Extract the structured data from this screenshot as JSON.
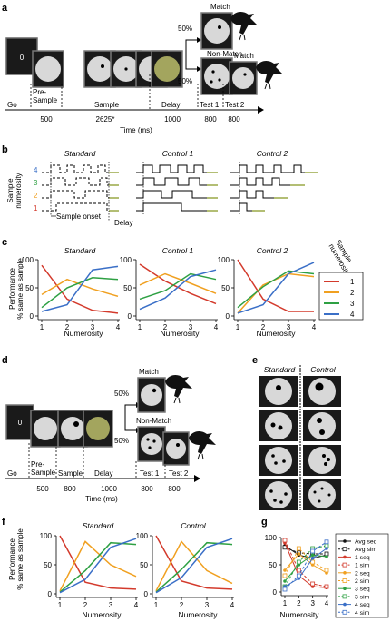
{
  "panels": {
    "a": "a",
    "b": "b",
    "c": "c",
    "d": "d",
    "e": "e",
    "f": "f",
    "g": "g"
  },
  "percent": "50%",
  "panel_a": {
    "screen_digit": "0",
    "match": "Match",
    "non_match": "Non-Match",
    "phase_labels": [
      "Go",
      "Pre-\nSample",
      "Sample",
      "Delay",
      "Test 1",
      "Test 2"
    ],
    "durations": [
      "500",
      "2625*",
      "1000",
      "800",
      "800"
    ],
    "time_label": "Time (ms)"
  },
  "panel_b": {
    "titles": [
      "Standard",
      "Control 1",
      "Control 2"
    ],
    "ylabel": "Sample\nnumerosity",
    "row_labels": [
      "4",
      "3",
      "2",
      "1"
    ],
    "row_colors": [
      "#3a6fc7",
      "#2ea043",
      "#f0a020",
      "#d33a2c"
    ],
    "sample_onset": "Sample onset",
    "delay": "Delay"
  },
  "panel_c": {
    "titles": [
      "Standard",
      "Control 1",
      "Control 2"
    ],
    "ylabel": "Performance\n% same as sample",
    "xlabel": "Numerosity",
    "yticks": [
      "0",
      "50",
      "100"
    ],
    "xticks": [
      "1",
      "2",
      "3",
      "4"
    ],
    "legend_title": "Sample\nnumerosity",
    "legend": [
      "1",
      "2",
      "3",
      "4"
    ]
  },
  "panel_d": {
    "screen_digit": "0",
    "match": "Match",
    "non_match": "Non-Match",
    "phase_labels": [
      "Go",
      "Pre-\nSample",
      "Sample",
      "Delay",
      "Test 1",
      "Test 2"
    ],
    "durations": [
      "500",
      "800",
      "1000",
      "800",
      "800"
    ],
    "time_label": "Time (ms)"
  },
  "panel_e": {
    "titles": [
      "Standard",
      "Control"
    ]
  },
  "panel_f": {
    "titles": [
      "Standard",
      "Control"
    ],
    "ylabel": "Performance\n% same as sample",
    "xlabel": "Numerosity",
    "yticks": [
      "0",
      "50",
      "100"
    ],
    "xticks": [
      "1",
      "2",
      "3",
      "4"
    ]
  },
  "panel_g": {
    "xlabel": "Numerosity",
    "yticks": [
      "0",
      "50",
      "100"
    ],
    "xticks": [
      "1",
      "2",
      "3",
      "4"
    ],
    "legend": [
      "Avg seq",
      "Avg sim",
      "1 seq",
      "1 sim",
      "2 seq",
      "2 sim",
      "3 seq",
      "3 sim",
      "4 seq",
      "4 sim"
    ]
  },
  "chart_data": [
    {
      "type": "line",
      "panel": "c",
      "title": "Standard",
      "x": [
        1,
        2,
        3,
        4
      ],
      "ylim": [
        0,
        100
      ],
      "series": [
        {
          "name": "1",
          "color": "#d33a2c",
          "values": [
            90,
            30,
            10,
            5
          ]
        },
        {
          "name": "2",
          "color": "#f0a020",
          "values": [
            38,
            65,
            48,
            35
          ]
        },
        {
          "name": "3",
          "color": "#2ea043",
          "values": [
            15,
            50,
            68,
            65
          ]
        },
        {
          "name": "4",
          "color": "#3a6fc7",
          "values": [
            8,
            20,
            82,
            88
          ]
        }
      ]
    },
    {
      "type": "line",
      "panel": "c",
      "title": "Control 1",
      "x": [
        1,
        2,
        3,
        4
      ],
      "ylim": [
        0,
        100
      ],
      "series": [
        {
          "name": "1",
          "color": "#d33a2c",
          "values": [
            92,
            62,
            40,
            22
          ]
        },
        {
          "name": "2",
          "color": "#f0a020",
          "values": [
            55,
            75,
            58,
            40
          ]
        },
        {
          "name": "3",
          "color": "#2ea043",
          "values": [
            30,
            45,
            75,
            65
          ]
        },
        {
          "name": "4",
          "color": "#3a6fc7",
          "values": [
            12,
            32,
            70,
            82
          ]
        }
      ]
    },
    {
      "type": "line",
      "panel": "c",
      "title": "Control 2",
      "x": [
        1,
        2,
        3,
        4
      ],
      "ylim": [
        0,
        100
      ],
      "series": [
        {
          "name": "1",
          "color": "#d33a2c",
          "values": [
            100,
            30,
            8,
            8
          ]
        },
        {
          "name": "2",
          "color": "#f0a020",
          "values": [
            5,
            55,
            75,
            70
          ]
        },
        {
          "name": "3",
          "color": "#2ea043",
          "values": [
            15,
            52,
            80,
            75
          ]
        },
        {
          "name": "4",
          "color": "#3a6fc7",
          "values": [
            5,
            20,
            75,
            95
          ]
        }
      ]
    },
    {
      "type": "line",
      "panel": "f",
      "title": "Standard",
      "x": [
        1,
        2,
        3,
        4
      ],
      "ylim": [
        0,
        100
      ],
      "series": [
        {
          "color": "#d33a2c",
          "values": [
            100,
            20,
            10,
            8
          ]
        },
        {
          "color": "#f0a020",
          "values": [
            5,
            90,
            50,
            30
          ]
        },
        {
          "color": "#2ea043",
          "values": [
            3,
            40,
            88,
            85
          ]
        },
        {
          "color": "#3a6fc7",
          "values": [
            2,
            25,
            80,
            95
          ]
        }
      ]
    },
    {
      "type": "line",
      "panel": "f",
      "title": "Control",
      "x": [
        1,
        2,
        3,
        4
      ],
      "ylim": [
        0,
        100
      ],
      "series": [
        {
          "color": "#d33a2c",
          "values": [
            100,
            22,
            10,
            8
          ]
        },
        {
          "color": "#f0a020",
          "values": [
            5,
            90,
            40,
            18
          ]
        },
        {
          "color": "#2ea043",
          "values": [
            3,
            42,
            88,
            85
          ]
        },
        {
          "color": "#3a6fc7",
          "values": [
            2,
            28,
            80,
            95
          ]
        }
      ]
    },
    {
      "type": "line",
      "panel": "g",
      "x": [
        1,
        2,
        3,
        4
      ],
      "ylim": [
        0,
        100
      ],
      "series": [
        {
          "name": "Avg seq",
          "color": "#111111",
          "dash": false,
          "values": [
            85,
            68,
            62,
            68
          ]
        },
        {
          "name": "Avg sim",
          "color": "#111111",
          "dash": true,
          "values": [
            82,
            72,
            70,
            70
          ]
        },
        {
          "name": "1 seq",
          "color": "#d33a2c",
          "dash": false,
          "values": [
            90,
            30,
            10,
            8
          ]
        },
        {
          "name": "1 sim",
          "color": "#d33a2c",
          "dash": true,
          "values": [
            95,
            40,
            15,
            10
          ]
        },
        {
          "name": "2 seq",
          "color": "#f0a020",
          "dash": false,
          "values": [
            40,
            70,
            50,
            35
          ]
        },
        {
          "name": "2 sim",
          "color": "#f0a020",
          "dash": true,
          "values": [
            30,
            80,
            55,
            40
          ]
        },
        {
          "name": "3 seq",
          "color": "#2ea043",
          "dash": false,
          "values": [
            20,
            50,
            68,
            65
          ]
        },
        {
          "name": "3 sim",
          "color": "#2ea043",
          "dash": true,
          "values": [
            10,
            55,
            80,
            85
          ]
        },
        {
          "name": "4 seq",
          "color": "#3a6fc7",
          "dash": false,
          "values": [
            10,
            25,
            62,
            80
          ]
        },
        {
          "name": "4 sim",
          "color": "#3a6fc7",
          "dash": true,
          "values": [
            5,
            30,
            75,
            92
          ]
        }
      ]
    }
  ]
}
